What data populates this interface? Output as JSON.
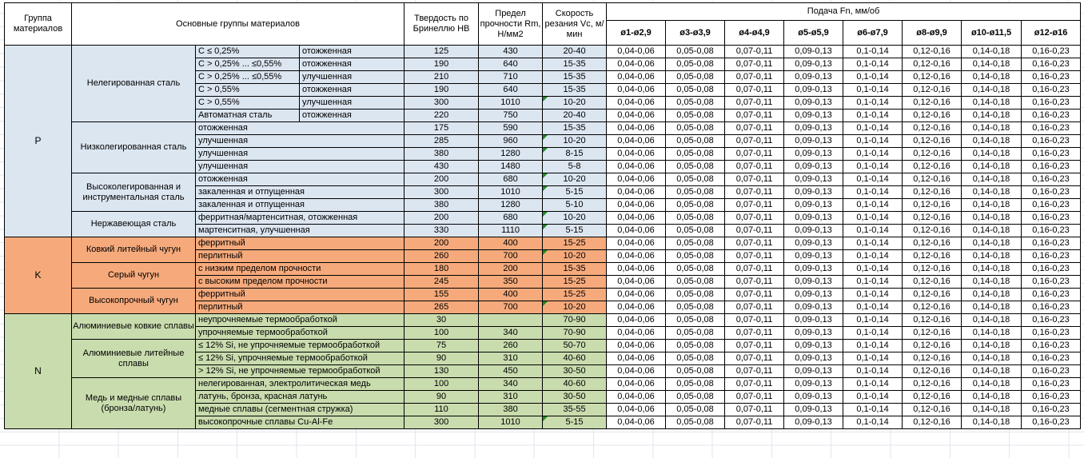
{
  "table": {
    "header": {
      "col_group": "Группа материалов",
      "col_main_groups": "Основные группы материалов",
      "col_hardness": "Твердость по Бринеллю HB",
      "col_strength": "Предел прочности Rm, Н/мм2",
      "col_speed": "Скорость резания Vc, м/мин",
      "feed_title": "Подача Fn, мм/об",
      "feed_columns": [
        "ø1-ø2,9",
        "ø3-ø3,9",
        "ø4-ø4,9",
        "ø5-ø5,9",
        "ø6-ø7,9",
        "ø8-ø9,9",
        "ø10-ø11,5",
        "ø12-ø16"
      ]
    },
    "feed_values": [
      "0,04-0,06",
      "0,05-0,08",
      "0,07-0,11",
      "0,09-0,13",
      "0,1-0,14",
      "0,12-0,16",
      "0,14-0,18",
      "0,16-0,23"
    ],
    "flag_color": "#1f8a1f",
    "groups": [
      {
        "code": "P",
        "color": "#dce6f1",
        "subgroups": [
          {
            "name": "Нелегированная сталь",
            "rows": [
              {
                "condition": "C ≤ 0,25%",
                "state": "отожженная",
                "hb": "125",
                "rm": "430",
                "vc": "20-40",
                "flag": false
              },
              {
                "condition": "C > 0,25% ... ≤0,55%",
                "state": "отожженная",
                "hb": "190",
                "rm": "640",
                "vc": "15-35",
                "flag": false
              },
              {
                "condition": "C > 0,25% ... ≤0,55%",
                "state": "улучшенная",
                "hb": "210",
                "rm": "710",
                "vc": "15-35",
                "flag": false
              },
              {
                "condition": "C > 0,55%",
                "state": "отожженная",
                "hb": "190",
                "rm": "640",
                "vc": "15-35",
                "flag": false
              },
              {
                "condition": "C > 0,55%",
                "state": "улучшенная",
                "hb": "300",
                "rm": "1010",
                "vc": "10-20",
                "flag": true
              },
              {
                "condition": "Автоматная сталь",
                "state": "отожженная",
                "hb": "220",
                "rm": "750",
                "vc": "20-40",
                "flag": false
              }
            ]
          },
          {
            "name": "Низколегированная сталь",
            "rows": [
              {
                "condition": "отожженная",
                "hb": "175",
                "rm": "590",
                "vc": "15-35",
                "flag": false
              },
              {
                "condition": "улучшенная",
                "hb": "285",
                "rm": "960",
                "vc": "10-20",
                "flag": true
              },
              {
                "condition": "улучшенная",
                "hb": "380",
                "rm": "1280",
                "vc": "8-15",
                "flag": true
              },
              {
                "condition": "улучшенная",
                "hb": "430",
                "rm": "1480",
                "vc": "5-8",
                "flag": false
              }
            ]
          },
          {
            "name": "Высоколегированная и инструментальная сталь",
            "rows": [
              {
                "condition": "отожженная",
                "hb": "200",
                "rm": "680",
                "vc": "10-20",
                "flag": true
              },
              {
                "condition": "закаленная и отпущенная",
                "hb": "300",
                "rm": "1010",
                "vc": "5-15",
                "flag": true
              },
              {
                "condition": "закаленная и отпущенная",
                "hb": "380",
                "rm": "1280",
                "vc": "5-10",
                "flag": false
              }
            ]
          },
          {
            "name": "Нержавеющая сталь",
            "rows": [
              {
                "condition": "ферритная/мартенситная, отожженная",
                "hb": "200",
                "rm": "680",
                "vc": "10-20",
                "flag": true
              },
              {
                "condition": "мартенситная, улучшенная",
                "hb": "330",
                "rm": "1110",
                "vc": "5-15",
                "flag": true
              }
            ]
          }
        ]
      },
      {
        "code": "K",
        "color": "#f6aa7c",
        "subgroups": [
          {
            "name": "Ковкий литейный чугун",
            "rows": [
              {
                "condition": "ферритный",
                "hb": "200",
                "rm": "400",
                "vc": "15-25",
                "flag": false
              },
              {
                "condition": "перлитный",
                "hb": "260",
                "rm": "700",
                "vc": "10-20",
                "flag": true
              }
            ]
          },
          {
            "name": "Серый чугун",
            "rows": [
              {
                "condition": "с низким пределом прочности",
                "hb": "180",
                "rm": "200",
                "vc": "15-35",
                "flag": false
              },
              {
                "condition": "с высоким пределом прочности",
                "hb": "245",
                "rm": "350",
                "vc": "15-25",
                "flag": false
              }
            ]
          },
          {
            "name": "Высокопрочный чугун",
            "rows": [
              {
                "condition": "ферритный",
                "hb": "155",
                "rm": "400",
                "vc": "15-25",
                "flag": false
              },
              {
                "condition": "перлитный",
                "hb": "265",
                "rm": "700",
                "vc": "10-20",
                "flag": true
              }
            ]
          }
        ]
      },
      {
        "code": "N",
        "color": "#c9dcae",
        "subgroups": [
          {
            "name": "Алюминиевые ковкие сплавы",
            "rows": [
              {
                "condition": "неупрочняемые термообработкой",
                "hb": "30",
                "rm": "",
                "vc": "70-90",
                "flag": false
              },
              {
                "condition": "упрочняемые термообработкой",
                "hb": "100",
                "rm": "340",
                "vc": "70-90",
                "flag": false
              }
            ]
          },
          {
            "name": "Алюминиевые литейные сплавы",
            "rows": [
              {
                "condition": "≤ 12% Si, не упрочняемые термообработкой",
                "hb": "75",
                "rm": "260",
                "vc": "50-70",
                "flag": false
              },
              {
                "condition": "≤ 12% Si, упрочняемые термообработкой",
                "hb": "90",
                "rm": "310",
                "vc": "40-60",
                "flag": false
              },
              {
                "condition": "> 12% Si, не упрочняемые термообработкой",
                "hb": "130",
                "rm": "450",
                "vc": "30-50",
                "flag": false
              }
            ]
          },
          {
            "name": "Медь и медные сплавы (бронза/латунь)",
            "rows": [
              {
                "condition": "нелегированная, электролитическая медь",
                "hb": "100",
                "rm": "340",
                "vc": "40-60",
                "flag": false
              },
              {
                "condition": "латунь, бронза, красная латунь",
                "hb": "90",
                "rm": "310",
                "vc": "30-50",
                "flag": false
              },
              {
                "condition": "медные сплавы (сегментная стружка)",
                "hb": "110",
                "rm": "380",
                "vc": "35-55",
                "flag": false
              },
              {
                "condition": "высокопрочные сплавы Cu-Al-Fe",
                "hb": "300",
                "rm": "1010",
                "vc": "5-15",
                "flag": true
              }
            ]
          }
        ]
      }
    ]
  }
}
